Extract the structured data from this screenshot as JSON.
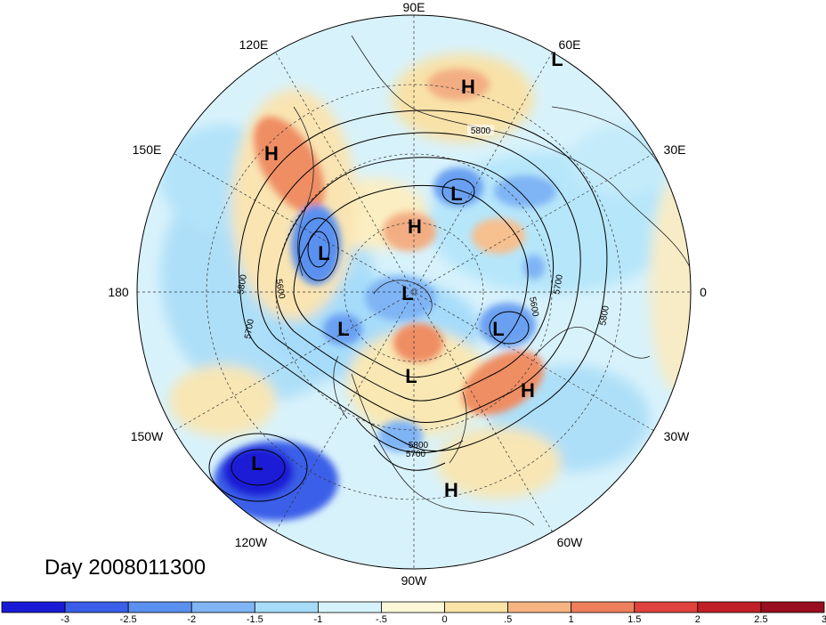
{
  "map": {
    "title": "Day 2008011300",
    "projection": "north polar stereographic",
    "longitude_labels": [
      "90E",
      "60E",
      "30E",
      "0",
      "30W",
      "60W",
      "90W",
      "120W",
      "150W",
      "180",
      "150E",
      "120E"
    ],
    "pressure_centers": [
      "L",
      "H",
      "H",
      "L",
      "H",
      "L",
      "L",
      "L",
      "L",
      "H",
      "L",
      "H",
      "L",
      "H"
    ],
    "contour_labels": [
      "5800",
      "5800",
      "5700",
      "5600",
      "5700",
      "5600",
      "5800",
      "5700",
      "5800"
    ]
  },
  "colorbar": {
    "colors": [
      "#1a1ad6",
      "#3a5ee8",
      "#5a90ef",
      "#7fb4f5",
      "#a6dcfa",
      "#d6f3fb",
      "#fdf8d8",
      "#f9e3a6",
      "#f6b482",
      "#ee7f5c",
      "#e0423d",
      "#c11f28",
      "#9a0f1f"
    ],
    "tick_labels": [
      "-3",
      "-2.5",
      "-2",
      "-1.5",
      "-1",
      "-.5",
      "0",
      ".5",
      "1",
      "1.5",
      "2",
      "2.5",
      "3"
    ]
  }
}
